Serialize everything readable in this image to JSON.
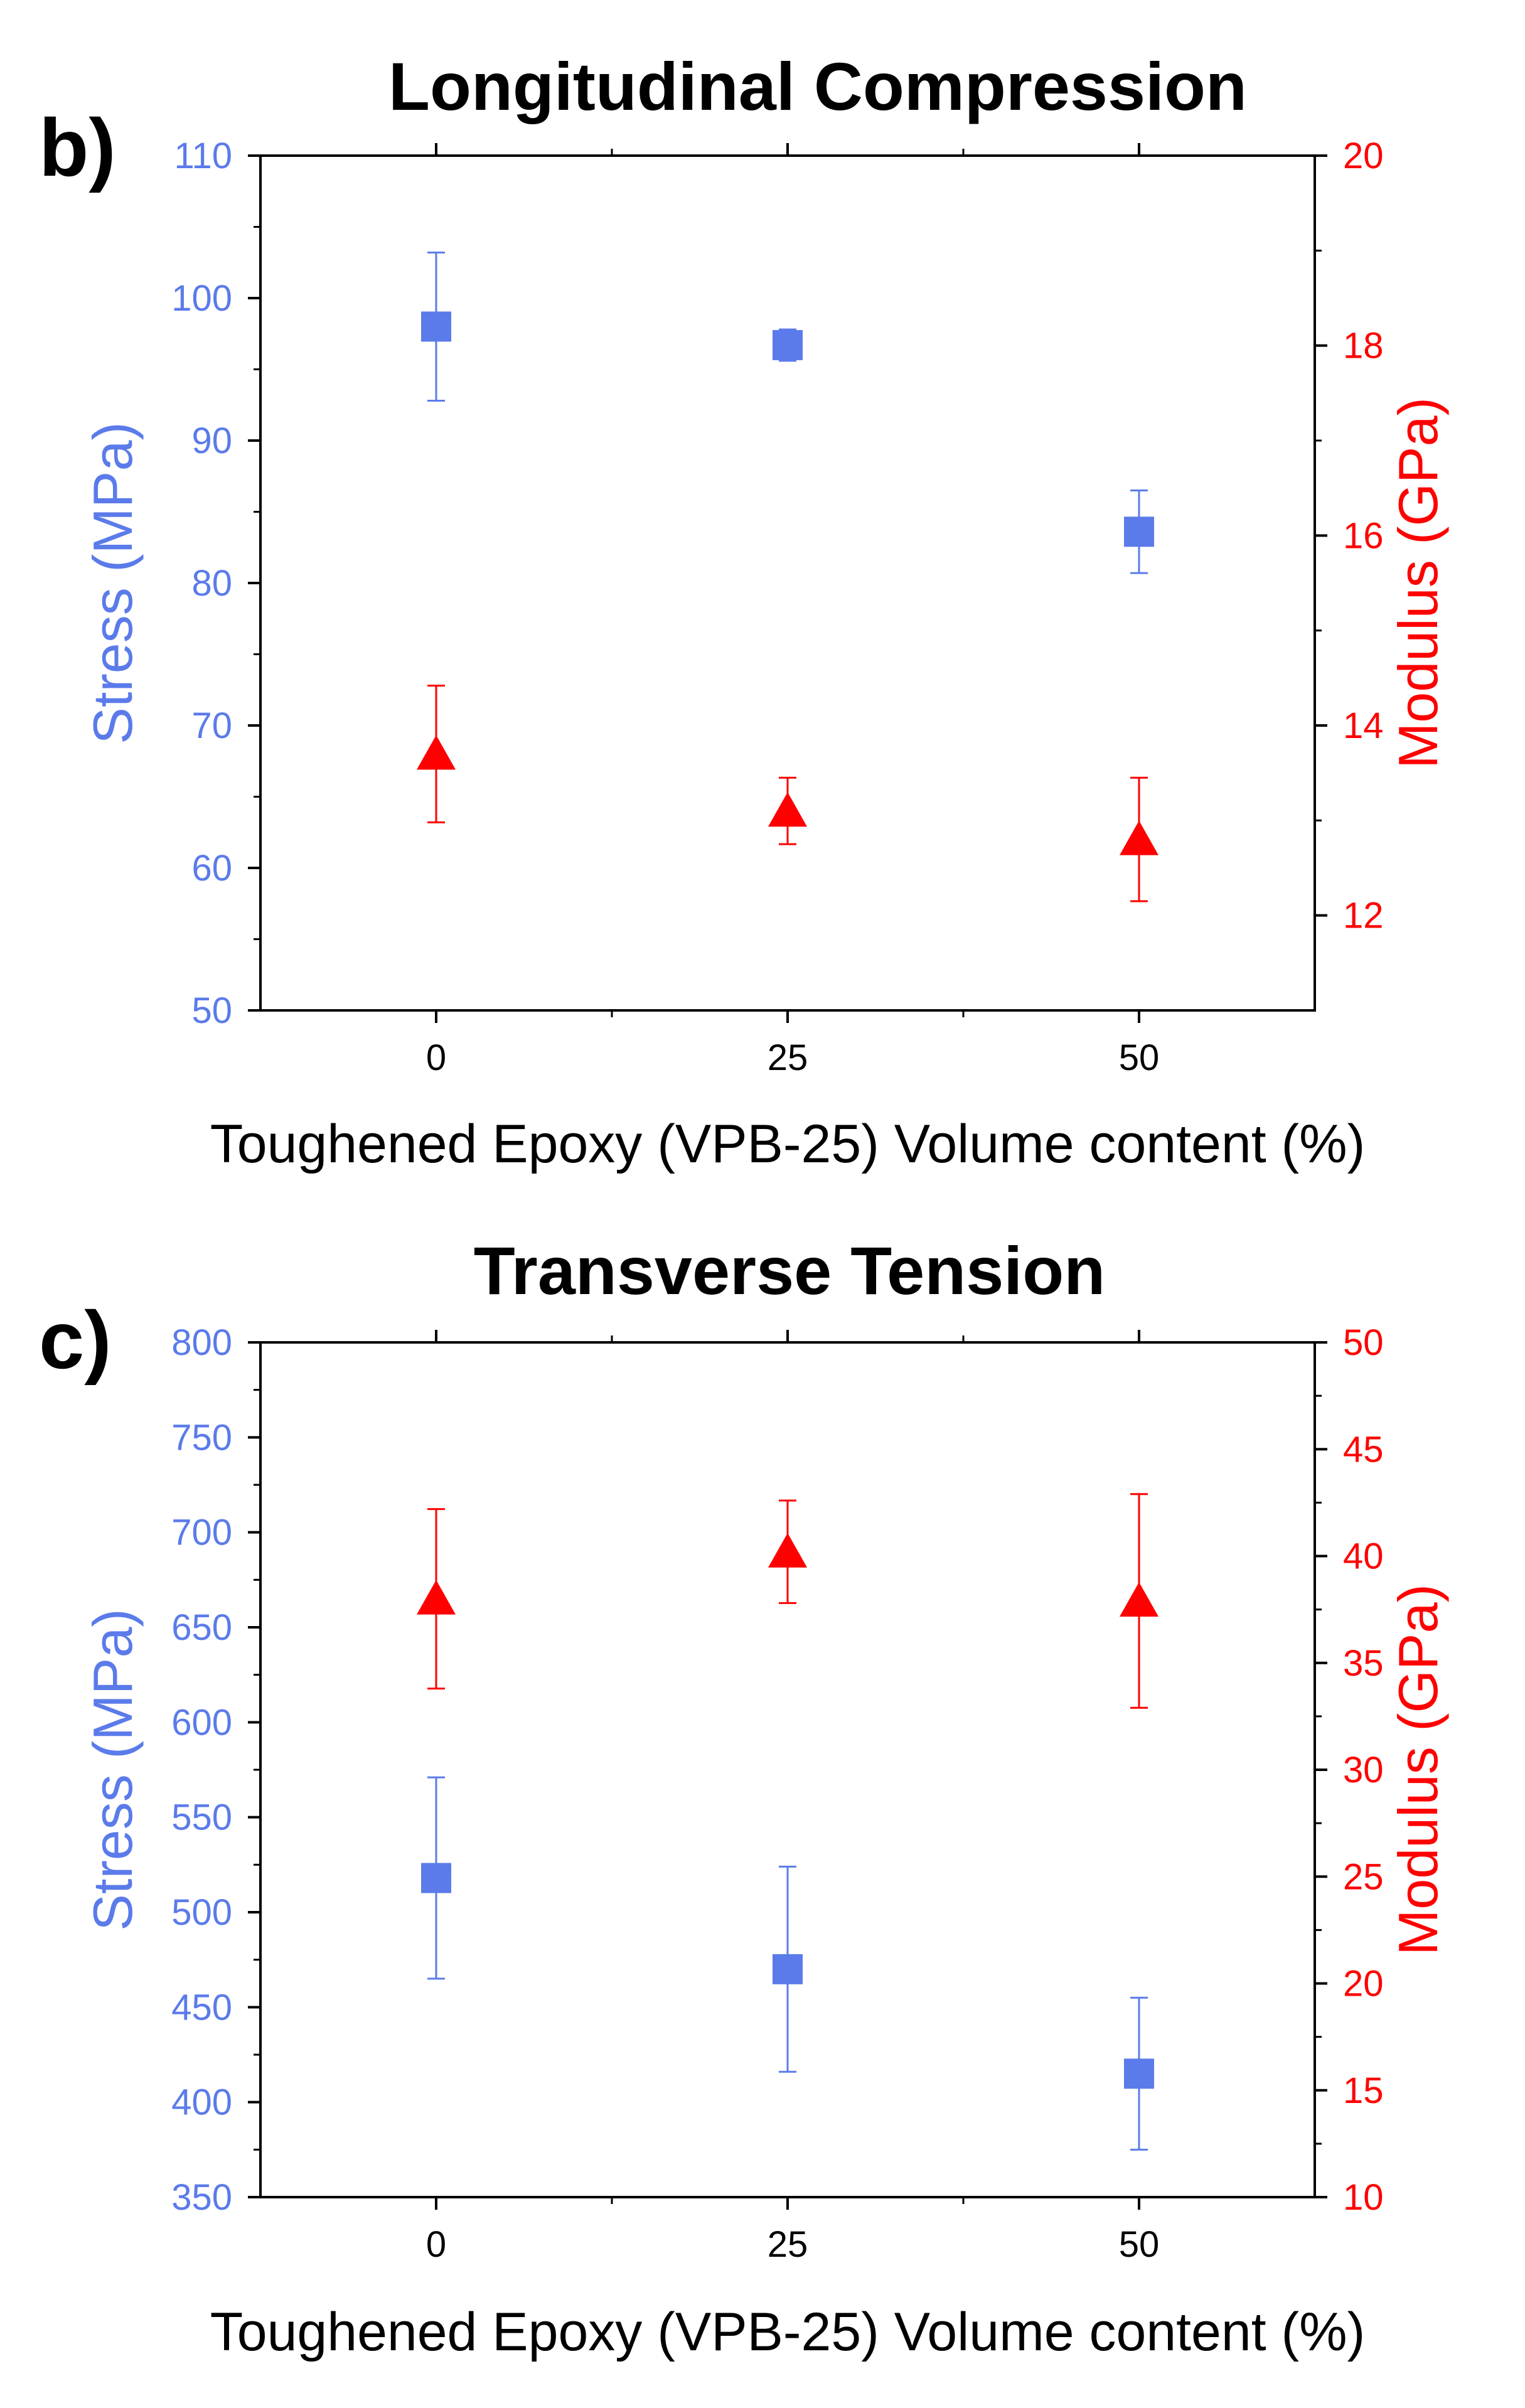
{
  "colors": {
    "stress": "#5b7bea",
    "modulus": "#ff0000",
    "axis": "#000000"
  },
  "chart_data": [
    {
      "type": "scatter",
      "panel_label": "b)",
      "title": "Longitudinal Compression",
      "xlabel": "Toughened Epoxy (VPB-25) Volume content (%)",
      "ylabel_left": "Stress (MPa)",
      "ylabel_right": "Modulus (GPa)",
      "x_ticks": [
        "0",
        "25",
        "50"
      ],
      "xlim": [
        -12.5,
        62.5
      ],
      "ylim_left": [
        50,
        110
      ],
      "ylim_right": [
        11,
        20
      ],
      "yticks_left": [
        "50",
        "60",
        "70",
        "80",
        "90",
        "100",
        "110"
      ],
      "yticks_right": [
        "12",
        "14",
        "16",
        "18",
        "20"
      ],
      "series": [
        {
          "name": "Stress",
          "axis": "left",
          "marker": "square",
          "x": [
            0,
            25,
            50
          ],
          "values": [
            98.0,
            96.7,
            83.6
          ],
          "errors": [
            5.2,
            1.1,
            2.9
          ]
        },
        {
          "name": "Modulus",
          "axis": "right",
          "marker": "triangle",
          "x": [
            0,
            25,
            50
          ],
          "values": [
            13.7,
            13.1,
            12.8
          ],
          "errors": [
            0.72,
            0.35,
            0.65
          ]
        }
      ]
    },
    {
      "type": "scatter",
      "panel_label": "c)",
      "title": "Transverse Tension",
      "xlabel": "Toughened Epoxy (VPB-25) Volume content (%)",
      "ylabel_left": "Stress (MPa)",
      "ylabel_right": "Modulus (GPa)",
      "x_ticks": [
        "0",
        "25",
        "50"
      ],
      "xlim": [
        -12.5,
        62.5
      ],
      "ylim_left": [
        350,
        800
      ],
      "ylim_right": [
        10,
        50
      ],
      "yticks_left": [
        "350",
        "400",
        "450",
        "500",
        "550",
        "600",
        "650",
        "700",
        "750",
        "800"
      ],
      "yticks_right": [
        "10",
        "15",
        "20",
        "25",
        "30",
        "35",
        "40",
        "45",
        "50"
      ],
      "series": [
        {
          "name": "Stress",
          "axis": "left",
          "marker": "square",
          "x": [
            0,
            25,
            50
          ],
          "values": [
            518,
            470,
            415
          ],
          "errors": [
            53,
            54,
            40
          ]
        },
        {
          "name": "Modulus",
          "axis": "right",
          "marker": "triangle",
          "x": [
            0,
            25,
            50
          ],
          "values": [
            38.0,
            40.2,
            37.9
          ],
          "errors": [
            4.2,
            2.4,
            5.0
          ]
        }
      ]
    }
  ]
}
